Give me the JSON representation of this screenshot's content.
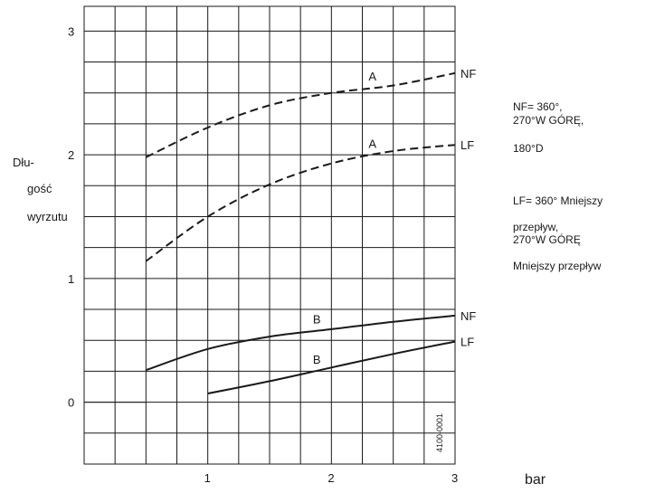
{
  "chart_data": {
    "type": "line",
    "title": "",
    "ylabel_lines": [
      "Dłu-",
      "gość",
      "wyrzutu"
    ],
    "xunit": "bar",
    "xlim": [
      0.0,
      3.0
    ],
    "ylim": [
      -0.5,
      3.2
    ],
    "x_ticks": [
      1,
      2,
      3
    ],
    "y_ticks": [
      0,
      1,
      2,
      3
    ],
    "grid": true,
    "series": [
      {
        "label": "A",
        "end_label": "NF",
        "style": "dashed",
        "x": [
          0.5,
          1.0,
          1.5,
          2.0,
          2.5,
          3.0
        ],
        "y": [
          1.98,
          2.22,
          2.4,
          2.5,
          2.56,
          2.66
        ]
      },
      {
        "label": "A",
        "end_label": "LF",
        "style": "dashed",
        "x": [
          0.5,
          1.0,
          1.5,
          2.0,
          2.5,
          3.0
        ],
        "y": [
          1.14,
          1.5,
          1.76,
          1.93,
          2.03,
          2.08
        ]
      },
      {
        "label": "B",
        "end_label": "NF",
        "style": "solid",
        "x": [
          0.5,
          1.0,
          1.5,
          2.0,
          2.5,
          3.0
        ],
        "y": [
          0.26,
          0.43,
          0.53,
          0.59,
          0.65,
          0.7
        ]
      },
      {
        "label": "B",
        "end_label": "LF",
        "style": "solid",
        "x": [
          1.0,
          1.5,
          2.0,
          2.5,
          3.0
        ],
        "y": [
          0.07,
          0.17,
          0.28,
          0.39,
          0.49
        ]
      }
    ],
    "annotations": {
      "code": "4100-0001",
      "notes": [
        "NF= 360°,",
        "270°W GÓRĘ,",
        "180°D",
        "LF= 360° Mniejszy",
        "przepływ,",
        "270°W GÓRĘ",
        "Mniejszy przepływ"
      ]
    }
  }
}
